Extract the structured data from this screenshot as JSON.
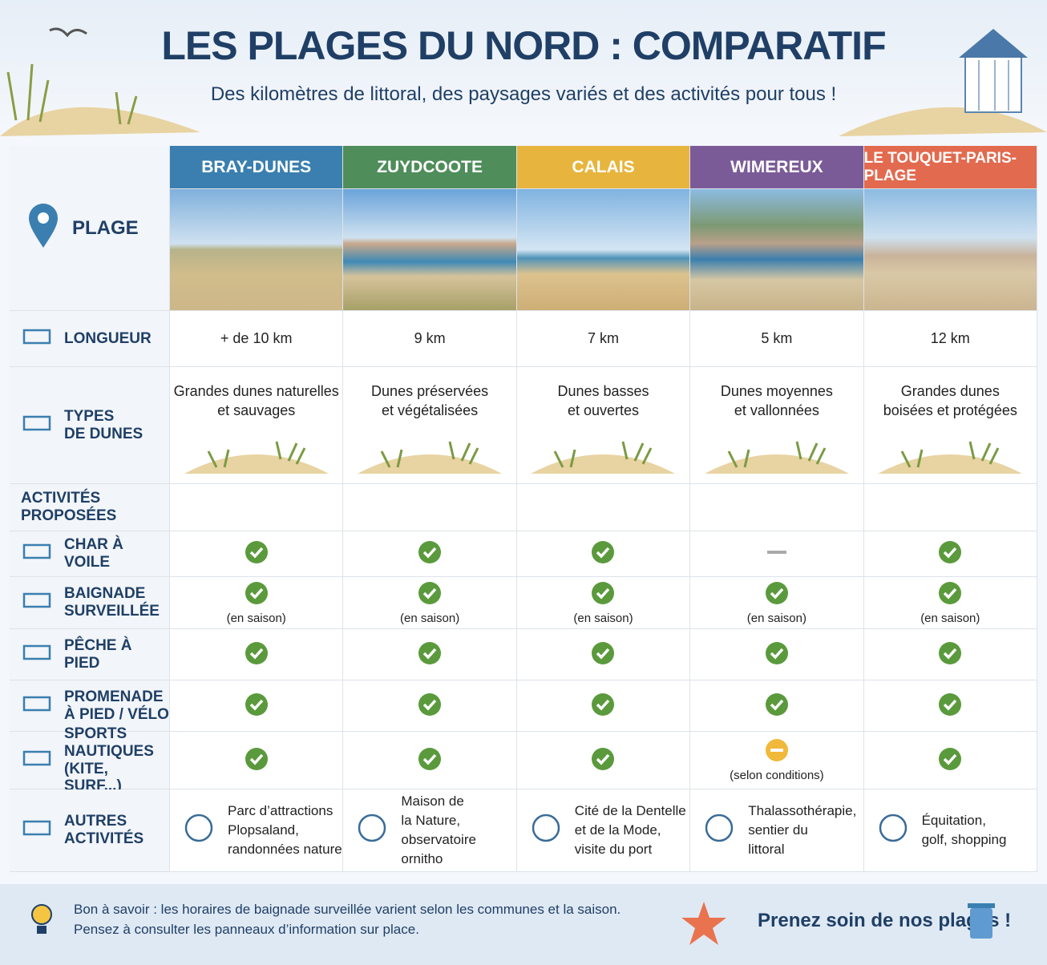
{
  "header": {
    "title": "LES PLAGES DU NORD : COMPARATIF",
    "subtitle": "Des kilomètres de littoral, des paysages variés et des activités pour tous !"
  },
  "table": {
    "corner": "PLAGE",
    "columns": [
      "BRAY-DUNES",
      "ZUYDCOOTE",
      "CALAIS",
      "WIMEREUX",
      "LE TOUQUET-PARIS-PLAGE"
    ],
    "rows": [
      {
        "label": "LONGUEUR",
        "cells": [
          "+ de 10 km",
          "9 km",
          "7 km",
          "5 km",
          "12 km"
        ]
      },
      {
        "label": "TYPES\nDE DUNES",
        "cells": [
          "Grandes dunes naturelles\net sauvages",
          "Dunes préservées\net végétalisées",
          "Dunes basses\net ouvertes",
          "Dunes moyennes\net vallonnées",
          "Grandes dunes\nboisées et protégées"
        ]
      }
    ],
    "activities_title": "ACTIVITÉS\nPROPOSÉES",
    "activities": [
      {
        "label": "CHAR À VOILE"
      },
      {
        "label": "BAIGNADE\nSURVEILLÉE",
        "note": "(en saison)"
      },
      {
        "label": "PÊCHE À PIED"
      },
      {
        "label": "PROMENADE\nÀ PIED / VÉLO"
      },
      {
        "label": "SPORTS NAUTIQUES\n(KITE, SURF...)",
        "note": "(selon conditions)"
      }
    ],
    "other": {
      "label": "AUTRES ACTIVITÉS",
      "cells": [
        "Parc d’attractions\nPlopsaland,\nrandonnées nature",
        "Maison de\nla Nature,\nobservatoire ornitho",
        "Cité de la Dentelle\net de la Mode,\nvisite du port",
        "Thalassothérapie,\nsentier du\nlittoral",
        "Équitation,\ngolf, shopping"
      ]
    }
  },
  "footer": {
    "tip": "Bon à savoir : les horaires de baignade surveillée varient selon les communes et la saison.\nPensez à consulter les panneaux d’information sur place.",
    "slogan": "Prenez soin de nos plages !"
  }
}
